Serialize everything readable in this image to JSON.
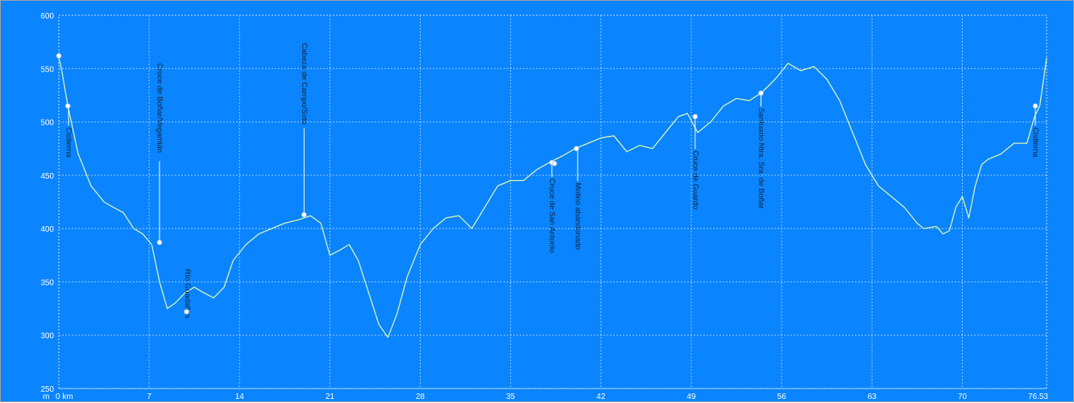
{
  "colors": {
    "background": "#0a84ff",
    "grid": "#cfe6ff",
    "line": "#d8f5b0",
    "marker": "#ffffff",
    "label": "#0d2233"
  },
  "chart_data": {
    "type": "line",
    "title": "",
    "xlabel": "",
    "ylabel": "",
    "unit_x": "km",
    "xlim": [
      0,
      76.53
    ],
    "ylim": [
      250,
      600
    ],
    "grid": true,
    "x_ticks": [
      {
        "value": 0,
        "label": "0 km"
      },
      {
        "value": 7,
        "label": "7"
      },
      {
        "value": 14,
        "label": "14"
      },
      {
        "value": 21,
        "label": "21"
      },
      {
        "value": 28,
        "label": "28"
      },
      {
        "value": 35,
        "label": "35"
      },
      {
        "value": 42,
        "label": "42"
      },
      {
        "value": 49,
        "label": "49"
      },
      {
        "value": 56,
        "label": "56"
      },
      {
        "value": 63,
        "label": "63"
      },
      {
        "value": 70,
        "label": "70"
      },
      {
        "value": 76.53,
        "label": "76.53"
      }
    ],
    "y_ticks": [
      {
        "value": 250,
        "label": "250"
      },
      {
        "value": 300,
        "label": "300"
      },
      {
        "value": 350,
        "label": "350"
      },
      {
        "value": 400,
        "label": "400"
      },
      {
        "value": 450,
        "label": "450"
      },
      {
        "value": 500,
        "label": "500"
      },
      {
        "value": 550,
        "label": "550"
      },
      {
        "value": 600,
        "label": "600"
      }
    ],
    "start_label": "m",
    "series": [
      {
        "x": [
          0,
          0.2,
          0.7,
          1.5,
          2.5,
          3.5,
          4.2,
          5.0,
          5.8,
          6.5,
          7.2,
          7.8,
          8.4,
          9.0,
          9.8,
          10.5,
          11.2,
          12.0,
          12.8,
          13.5,
          14.5,
          15.5,
          16.5,
          17.5,
          18.5,
          19.5,
          20.3,
          21.0,
          21.8,
          22.5,
          23.2,
          24.0,
          24.8,
          25.5,
          26.2,
          27.0,
          28.0,
          29.0,
          30.0,
          31.0,
          32.0,
          33.0,
          34.0,
          35.0,
          36.0,
          37.0,
          38.0,
          39.0,
          40.0,
          41.0,
          42.0,
          43.0,
          44.0,
          45.0,
          46.0,
          47.0,
          48.0,
          48.7,
          49.5,
          50.5,
          51.5,
          52.5,
          53.5,
          54.5,
          55.5,
          56.5,
          57.5,
          58.5,
          59.5,
          60.5,
          61.5,
          62.5,
          63.5,
          64.5,
          65.5,
          66.5,
          67.0,
          68.0,
          68.5,
          69.0,
          69.5,
          70.0,
          70.5,
          71.0,
          71.5,
          72.0,
          73.0,
          74.0,
          75.0,
          75.6,
          76.0,
          76.53
        ],
        "y": [
          560,
          550,
          515,
          470,
          440,
          425,
          420,
          415,
          400,
          395,
          385,
          350,
          325,
          330,
          340,
          345,
          340,
          335,
          345,
          370,
          385,
          395,
          400,
          405,
          408,
          412,
          405,
          375,
          380,
          385,
          370,
          340,
          310,
          298,
          320,
          355,
          385,
          400,
          410,
          412,
          400,
          420,
          440,
          445,
          445,
          455,
          462,
          468,
          475,
          480,
          485,
          487,
          472,
          478,
          475,
          490,
          505,
          508,
          490,
          500,
          515,
          522,
          520,
          528,
          540,
          555,
          548,
          552,
          540,
          520,
          490,
          460,
          440,
          430,
          420,
          405,
          400,
          402,
          395,
          398,
          420,
          430,
          410,
          440,
          460,
          465,
          470,
          480,
          480,
          505,
          515,
          560
        ]
      }
    ],
    "markers": [
      {
        "x": 0.0,
        "y": 562
      },
      {
        "x": 0.7,
        "y": 515
      },
      {
        "x": 7.8,
        "y": 387
      },
      {
        "x": 9.9,
        "y": 322
      },
      {
        "x": 19.0,
        "y": 413
      },
      {
        "x": 38.2,
        "y": 462
      },
      {
        "x": 38.4,
        "y": 461
      },
      {
        "x": 40.1,
        "y": 475
      },
      {
        "x": 49.3,
        "y": 505
      },
      {
        "x": 54.4,
        "y": 527
      },
      {
        "x": 77.0,
        "y": 515
      }
    ],
    "annotations": [
      {
        "x": 0.75,
        "text": "Cistierna",
        "anchor_y": 495
      },
      {
        "x": 7.8,
        "text": "Cruce de Boñar/Vegamián",
        "anchor_y": 555
      },
      {
        "x": 9.95,
        "text": "Río Guadañas",
        "anchor_y": 362
      },
      {
        "x": 19.0,
        "text": "Cabeza de Campo/Soto",
        "anchor_y": 574
      },
      {
        "x": 38.2,
        "text": "Cruce de San Antonio",
        "anchor_y": 447
      },
      {
        "x": 40.2,
        "text": "Molino abandonado",
        "anchor_y": 443
      },
      {
        "x": 49.3,
        "text": "Cruce de Guardo",
        "anchor_y": 473
      },
      {
        "x": 54.4,
        "text": "Santuario Ntra. Sra. de Boñar",
        "anchor_y": 513
      },
      {
        "x": 77.0,
        "text": "Cistierna",
        "anchor_y": 495
      }
    ]
  }
}
